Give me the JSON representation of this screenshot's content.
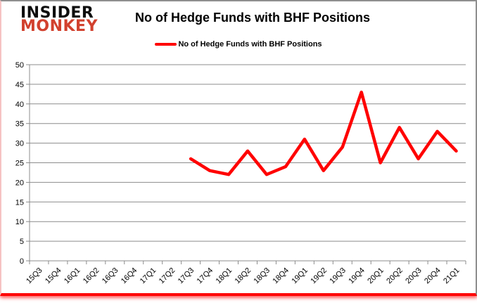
{
  "brand": {
    "line1": "INSIDER",
    "line2": "MONKEY"
  },
  "header": {
    "title": "No of Hedge Funds with BHF Positions"
  },
  "legend": {
    "label": "No of Hedge Funds with BHF Positions"
  },
  "colors": {
    "series": "#ff0000",
    "grid": "#8c8c8c",
    "axis": "#8c8c8c",
    "text": "#000000",
    "brand_black": "#0d0d0d",
    "brand_red": "#d2412e",
    "frame_gray": "#8f8f8f",
    "frame_red": "#ff0000",
    "frame_pink": "#f6c3c3",
    "background": "#ffffff"
  },
  "chart_data": {
    "type": "line",
    "title": "No of Hedge Funds with BHF Positions",
    "categories": [
      "15Q3",
      "15Q4",
      "16Q1",
      "16Q2",
      "16Q3",
      "16Q4",
      "17Q1",
      "17Q2",
      "17Q3",
      "17Q4",
      "18Q1",
      "18Q2",
      "18Q3",
      "18Q4",
      "19Q1",
      "19Q2",
      "19Q3",
      "19Q4",
      "20Q1",
      "20Q2",
      "20Q3",
      "20Q4",
      "21Q1"
    ],
    "series": [
      {
        "name": "No of Hedge Funds with BHF Positions",
        "color": "#ff0000",
        "values": [
          null,
          null,
          null,
          null,
          null,
          null,
          null,
          null,
          26,
          23,
          22,
          28,
          22,
          24,
          31,
          23,
          29,
          43,
          25,
          34,
          26,
          33,
          28
        ]
      }
    ],
    "xlabel": "",
    "ylabel": "",
    "ylim": [
      0,
      50
    ],
    "yticks": [
      0,
      5,
      10,
      15,
      20,
      25,
      30,
      35,
      40,
      45,
      50
    ],
    "grid": "horizontal",
    "legend_position": "top"
  }
}
